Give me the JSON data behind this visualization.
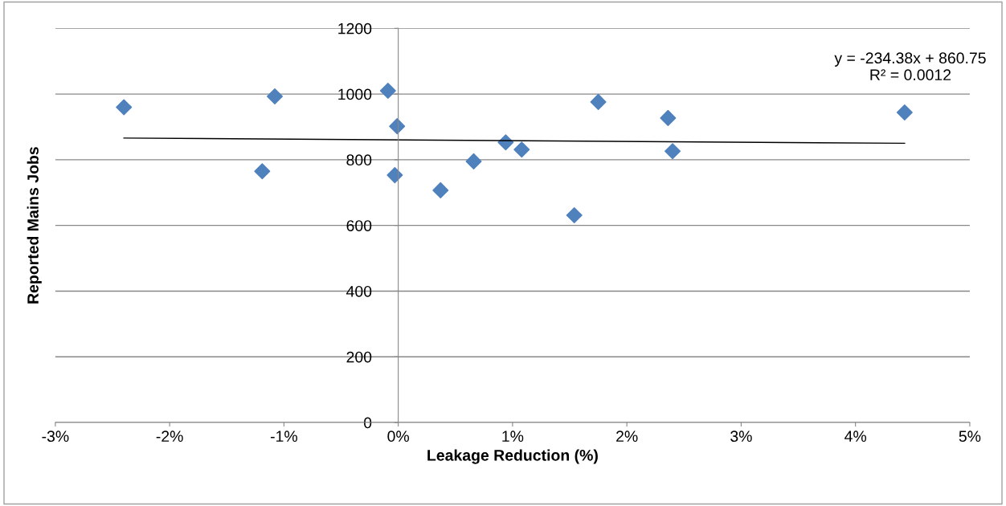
{
  "chart_data": {
    "type": "scatter",
    "xlabel": "Leakage Reduction (%)",
    "ylabel": "Reported Mains Jobs",
    "series": [
      {
        "color": "#4f81bd",
        "marker": "diamond",
        "x": [
          -2.4,
          -1.19,
          -1.08,
          -0.09,
          -0.01,
          -0.03,
          0.37,
          0.66,
          0.94,
          1.08,
          1.54,
          1.75,
          2.36,
          2.4,
          4.43
        ],
        "values": [
          960,
          765,
          993,
          1010,
          902,
          753,
          707,
          795,
          853,
          831,
          631,
          976,
          927,
          826,
          944
        ]
      },
      {
        "type": "line",
        "color": "#000000",
        "x": [
          -2.4,
          4.43
        ],
        "values": [
          866,
          850
        ]
      }
    ],
    "annotations": [
      "y = -234.38x + 860.75\nR² = 0.0012"
    ],
    "xlim": [
      -3,
      5
    ],
    "xticks": [
      {
        "value": -3,
        "label": "-3%"
      },
      {
        "value": -2,
        "label": "-2%"
      },
      {
        "value": -1,
        "label": "-1%"
      },
      {
        "value": 0,
        "label": "0%"
      },
      {
        "value": 1,
        "label": "1%"
      },
      {
        "value": 2,
        "label": "2%"
      },
      {
        "value": 3,
        "label": "3%"
      },
      {
        "value": 4,
        "label": "4%"
      },
      {
        "value": 5,
        "label": "5%"
      }
    ],
    "ylim": [
      0,
      1200
    ],
    "yticks": [
      0,
      200,
      400,
      600,
      800,
      1000,
      1200
    ],
    "grid": "y"
  }
}
